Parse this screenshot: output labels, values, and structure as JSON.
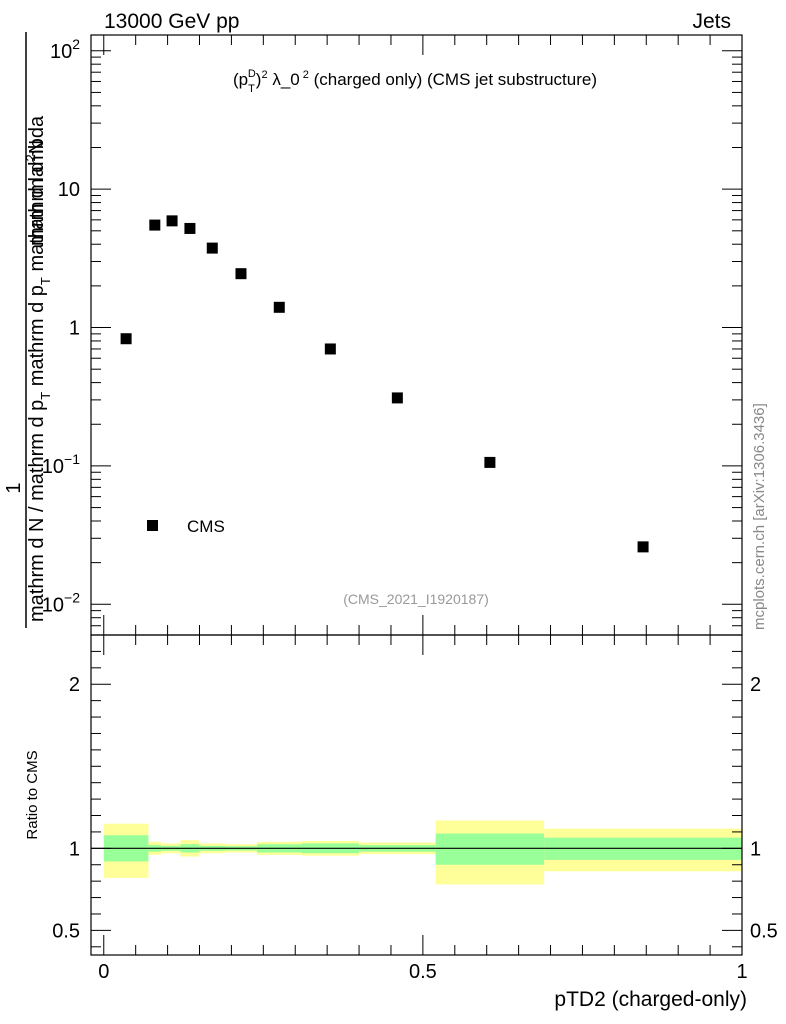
{
  "header": {
    "left": "13000 GeV pp",
    "right": "Jets"
  },
  "side_label": "mcplots.cern.ch [arXiv:1306.3436]",
  "chart_data": [
    {
      "type": "scatter",
      "title_parts": [
        "(p",
        "T",
        "D",
        ")",
        "2",
        " λ_0",
        "2",
        " (charged only) (CMS jet substructure)"
      ],
      "analysis_tag": "(CMS_2021_I1920187)",
      "ylabel_lines": [
        "1",
        "mathrm d N / mathrm d p",
        "T",
        " mathrm d p",
        "T",
        " mathrm d lambda",
        "mathrm d",
        "2",
        "N"
      ],
      "y_scale": "log",
      "xlim": [
        -0.02,
        1.0
      ],
      "ylim": [
        0.006,
        130
      ],
      "y_ticks": [
        {
          "value": 0.01,
          "base": "10",
          "exp": "−2"
        },
        {
          "value": 0.1,
          "base": "10",
          "exp": "−1"
        },
        {
          "value": 1,
          "base": "1",
          "exp": ""
        },
        {
          "value": 10,
          "base": "10",
          "exp": ""
        },
        {
          "value": 100,
          "base": "10",
          "exp": "2"
        }
      ],
      "legend": {
        "position": "bottom-left",
        "entries": [
          "CMS"
        ]
      },
      "series": [
        {
          "name": "CMS",
          "marker": "square",
          "color": "#000000",
          "x": [
            0.035,
            0.08,
            0.107,
            0.135,
            0.17,
            0.215,
            0.275,
            0.355,
            0.46,
            0.605,
            0.845
          ],
          "y": [
            0.83,
            5.5,
            5.9,
            5.2,
            3.75,
            2.45,
            1.4,
            0.7,
            0.31,
            0.106,
            0.026
          ]
        }
      ]
    },
    {
      "type": "area",
      "ylabel": "Ratio to CMS",
      "xlabel": "pTD2 (charged-only)",
      "xlim": [
        -0.02,
        1.0
      ],
      "ylim": [
        0.35,
        2.3
      ],
      "x_ticks": [
        {
          "value": 0,
          "label": "0"
        },
        {
          "value": 0.5,
          "label": "0.5"
        },
        {
          "value": 1,
          "label": "1"
        }
      ],
      "y_ticks": [
        {
          "value": 0.5,
          "label": "0.5"
        },
        {
          "value": 1,
          "label": "1"
        },
        {
          "value": 2,
          "label": "2"
        }
      ],
      "reference_line": 1,
      "band_colors": {
        "outer": "#ffff99",
        "inner": "#99ff99"
      },
      "bins": [
        {
          "x0": 0.0,
          "x1": 0.07,
          "outer": [
            0.82,
            1.15
          ],
          "inner": [
            0.92,
            1.08
          ]
        },
        {
          "x0": 0.07,
          "x1": 0.09,
          "outer": [
            0.96,
            1.04
          ],
          "inner": [
            0.98,
            1.02
          ]
        },
        {
          "x0": 0.09,
          "x1": 0.12,
          "outer": [
            0.97,
            1.03
          ],
          "inner": [
            0.985,
            1.015
          ]
        },
        {
          "x0": 0.12,
          "x1": 0.15,
          "outer": [
            0.95,
            1.05
          ],
          "inner": [
            0.975,
            1.025
          ]
        },
        {
          "x0": 0.15,
          "x1": 0.19,
          "outer": [
            0.97,
            1.03
          ],
          "inner": [
            0.985,
            1.015
          ]
        },
        {
          "x0": 0.19,
          "x1": 0.24,
          "outer": [
            0.975,
            1.025
          ],
          "inner": [
            0.987,
            1.013
          ]
        },
        {
          "x0": 0.24,
          "x1": 0.31,
          "outer": [
            0.96,
            1.04
          ],
          "inner": [
            0.975,
            1.025
          ]
        },
        {
          "x0": 0.31,
          "x1": 0.4,
          "outer": [
            0.955,
            1.045
          ],
          "inner": [
            0.97,
            1.03
          ]
        },
        {
          "x0": 0.4,
          "x1": 0.52,
          "outer": [
            0.965,
            1.035
          ],
          "inner": [
            0.98,
            1.02
          ]
        },
        {
          "x0": 0.52,
          "x1": 0.69,
          "outer": [
            0.78,
            1.17
          ],
          "inner": [
            0.9,
            1.09
          ]
        },
        {
          "x0": 0.69,
          "x1": 1.0,
          "outer": [
            0.86,
            1.12
          ],
          "inner": [
            0.93,
            1.065
          ]
        }
      ]
    }
  ]
}
